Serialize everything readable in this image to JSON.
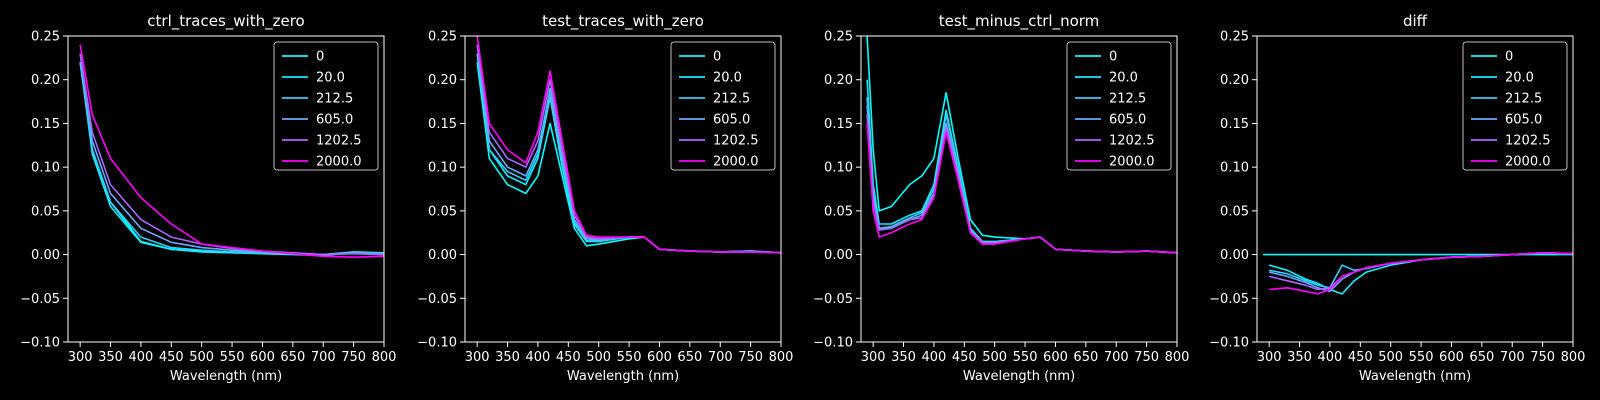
{
  "chart_data": [
    {
      "type": "line",
      "title": "ctrl_traces_with_zero",
      "xlabel": "Wavelength (nm)",
      "ylabel": "",
      "xlim": [
        280,
        800
      ],
      "ylim": [
        -0.1,
        0.25
      ],
      "xticks": [
        300,
        350,
        400,
        450,
        500,
        550,
        600,
        650,
        700,
        750,
        800
      ],
      "yticks": [
        -0.1,
        -0.05,
        0.0,
        0.05,
        0.1,
        0.15,
        0.2,
        0.25
      ],
      "ytick_labels": [
        "−0.10",
        "−0.05",
        "0.00",
        "0.05",
        "0.10",
        "0.15",
        "0.20",
        "0.25"
      ],
      "legend": "top-right",
      "series": [
        {
          "name": "0",
          "color": "#00ffff",
          "x": [
            300,
            320,
            350,
            400,
            450,
            500,
            550,
            600,
            650,
            700,
            750,
            800
          ],
          "y": [
            0.22,
            0.12,
            0.06,
            0.015,
            0.006,
            0.004,
            0.003,
            0.002,
            0.001,
            0.0,
            0.003,
            0.002
          ]
        },
        {
          "name": "20.0",
          "color": "#10efff",
          "x": [
            300,
            320,
            350,
            400,
            450,
            500,
            550,
            600,
            650,
            700,
            750,
            800
          ],
          "y": [
            0.22,
            0.115,
            0.055,
            0.014,
            0.006,
            0.003,
            0.002,
            0.001,
            0.0,
            -0.001,
            0.002,
            0.001
          ]
        },
        {
          "name": "212.5",
          "color": "#33ccff",
          "x": [
            300,
            320,
            350,
            400,
            450,
            500,
            550,
            600,
            650,
            700,
            750,
            800
          ],
          "y": [
            0.22,
            0.12,
            0.06,
            0.02,
            0.008,
            0.005,
            0.003,
            0.002,
            0.001,
            0.0,
            0.002,
            0.001
          ]
        },
        {
          "name": "605.0",
          "color": "#66aaff",
          "x": [
            300,
            320,
            350,
            400,
            450,
            500,
            550,
            600,
            650,
            700,
            750,
            800
          ],
          "y": [
            0.23,
            0.13,
            0.07,
            0.03,
            0.014,
            0.008,
            0.005,
            0.003,
            0.001,
            0.0,
            0.002,
            0.001
          ]
        },
        {
          "name": "1202.5",
          "color": "#aa66ff",
          "x": [
            300,
            320,
            350,
            400,
            450,
            500,
            550,
            600,
            650,
            700,
            750,
            800
          ],
          "y": [
            0.23,
            0.14,
            0.08,
            0.04,
            0.02,
            0.012,
            0.007,
            0.004,
            0.002,
            0.0,
            0.001,
            0.0
          ]
        },
        {
          "name": "2000.0",
          "color": "#ff00ff",
          "x": [
            300,
            320,
            350,
            400,
            450,
            500,
            550,
            600,
            650,
            700,
            750,
            800
          ],
          "y": [
            0.24,
            0.16,
            0.11,
            0.065,
            0.035,
            0.012,
            0.008,
            0.004,
            0.001,
            -0.002,
            -0.003,
            -0.002
          ]
        }
      ]
    },
    {
      "type": "line",
      "title": "test_traces_with_zero",
      "xlabel": "Wavelength (nm)",
      "ylabel": "",
      "xlim": [
        280,
        800
      ],
      "ylim": [
        -0.1,
        0.25
      ],
      "xticks": [
        300,
        350,
        400,
        450,
        500,
        550,
        600,
        650,
        700,
        750,
        800
      ],
      "yticks": [
        -0.1,
        -0.05,
        0.0,
        0.05,
        0.1,
        0.15,
        0.2,
        0.25
      ],
      "ytick_labels": [
        "−0.10",
        "−0.05",
        "0.00",
        "0.05",
        "0.10",
        "0.15",
        "0.20",
        "0.25"
      ],
      "legend": "top-right",
      "series": [
        {
          "name": "0",
          "color": "#00ffff",
          "x": [
            300,
            320,
            350,
            380,
            400,
            420,
            440,
            460,
            480,
            500,
            550,
            575,
            600,
            650,
            700,
            750,
            800
          ],
          "y": [
            0.22,
            0.11,
            0.08,
            0.07,
            0.09,
            0.15,
            0.09,
            0.03,
            0.01,
            0.012,
            0.018,
            0.02,
            0.006,
            0.004,
            0.003,
            0.004,
            0.002
          ]
        },
        {
          "name": "20.0",
          "color": "#10efff",
          "x": [
            300,
            320,
            350,
            380,
            400,
            420,
            440,
            460,
            480,
            500,
            550,
            575,
            600,
            650,
            700,
            750,
            800
          ],
          "y": [
            0.23,
            0.12,
            0.09,
            0.08,
            0.11,
            0.18,
            0.1,
            0.035,
            0.015,
            0.015,
            0.02,
            0.02,
            0.006,
            0.004,
            0.003,
            0.004,
            0.002
          ]
        },
        {
          "name": "212.5",
          "color": "#33ccff",
          "x": [
            300,
            320,
            350,
            380,
            400,
            420,
            440,
            460,
            480,
            500,
            550,
            575,
            600,
            650,
            700,
            750,
            800
          ],
          "y": [
            0.23,
            0.12,
            0.095,
            0.085,
            0.115,
            0.19,
            0.11,
            0.038,
            0.016,
            0.016,
            0.02,
            0.02,
            0.006,
            0.004,
            0.003,
            0.004,
            0.002
          ]
        },
        {
          "name": "605.0",
          "color": "#66aaff",
          "x": [
            300,
            320,
            350,
            380,
            400,
            420,
            440,
            460,
            480,
            500,
            550,
            575,
            600,
            650,
            700,
            750,
            800
          ],
          "y": [
            0.24,
            0.13,
            0.1,
            0.09,
            0.12,
            0.185,
            0.11,
            0.04,
            0.018,
            0.017,
            0.02,
            0.02,
            0.006,
            0.004,
            0.003,
            0.003,
            0.002
          ]
        },
        {
          "name": "1202.5",
          "color": "#aa66ff",
          "x": [
            300,
            320,
            350,
            380,
            400,
            420,
            440,
            460,
            480,
            500,
            550,
            575,
            600,
            650,
            700,
            750,
            800
          ],
          "y": [
            0.24,
            0.14,
            0.11,
            0.1,
            0.13,
            0.2,
            0.12,
            0.045,
            0.02,
            0.018,
            0.02,
            0.02,
            0.006,
            0.004,
            0.003,
            0.003,
            0.002
          ]
        },
        {
          "name": "2000.0",
          "color": "#ff00ff",
          "x": [
            300,
            320,
            350,
            380,
            400,
            420,
            440,
            460,
            480,
            500,
            550,
            575,
            600,
            650,
            700,
            750,
            800
          ],
          "y": [
            0.25,
            0.15,
            0.12,
            0.105,
            0.14,
            0.21,
            0.13,
            0.05,
            0.022,
            0.02,
            0.02,
            0.02,
            0.006,
            0.004,
            0.003,
            0.003,
            0.002
          ]
        }
      ]
    },
    {
      "type": "line",
      "title": "test_minus_ctrl_norm",
      "xlabel": "Wavelength (nm)",
      "ylabel": "",
      "xlim": [
        280,
        800
      ],
      "ylim": [
        -0.1,
        0.25
      ],
      "xticks": [
        300,
        350,
        400,
        450,
        500,
        550,
        600,
        650,
        700,
        750,
        800
      ],
      "yticks": [
        -0.1,
        -0.05,
        0.0,
        0.05,
        0.1,
        0.15,
        0.2,
        0.25
      ],
      "ytick_labels": [
        "−0.10",
        "−0.05",
        "0.00",
        "0.05",
        "0.10",
        "0.15",
        "0.20",
        "0.25"
      ],
      "legend": "top-right",
      "series": [
        {
          "name": "0",
          "color": "#00ffff",
          "x": [
            290,
            300,
            310,
            330,
            360,
            380,
            400,
            420,
            440,
            460,
            480,
            500,
            550,
            575,
            600,
            650,
            700,
            750,
            800
          ],
          "y": [
            0.25,
            0.12,
            0.05,
            0.055,
            0.08,
            0.09,
            0.11,
            0.185,
            0.11,
            0.04,
            0.022,
            0.02,
            0.018,
            0.02,
            0.006,
            0.004,
            0.003,
            0.004,
            0.002
          ]
        },
        {
          "name": "20.0",
          "color": "#10efff",
          "x": [
            290,
            300,
            310,
            330,
            360,
            380,
            400,
            420,
            440,
            460,
            480,
            500,
            550,
            575,
            600,
            650,
            700,
            750,
            800
          ],
          "y": [
            0.2,
            0.08,
            0.035,
            0.035,
            0.045,
            0.05,
            0.08,
            0.165,
            0.1,
            0.03,
            0.015,
            0.015,
            0.018,
            0.02,
            0.006,
            0.004,
            0.003,
            0.004,
            0.002
          ]
        },
        {
          "name": "212.5",
          "color": "#33ccff",
          "x": [
            290,
            300,
            310,
            330,
            360,
            380,
            400,
            420,
            440,
            460,
            480,
            500,
            550,
            575,
            600,
            650,
            700,
            750,
            800
          ],
          "y": [
            0.18,
            0.07,
            0.03,
            0.032,
            0.042,
            0.048,
            0.075,
            0.16,
            0.1,
            0.03,
            0.015,
            0.015,
            0.018,
            0.02,
            0.006,
            0.004,
            0.003,
            0.004,
            0.002
          ]
        },
        {
          "name": "605.0",
          "color": "#66aaff",
          "x": [
            290,
            300,
            310,
            330,
            360,
            380,
            400,
            420,
            440,
            460,
            480,
            500,
            550,
            575,
            600,
            650,
            700,
            750,
            800
          ],
          "y": [
            0.17,
            0.065,
            0.03,
            0.03,
            0.04,
            0.045,
            0.07,
            0.15,
            0.095,
            0.028,
            0.014,
            0.014,
            0.018,
            0.02,
            0.006,
            0.004,
            0.003,
            0.004,
            0.002
          ]
        },
        {
          "name": "1202.5",
          "color": "#aa66ff",
          "x": [
            290,
            300,
            310,
            330,
            360,
            380,
            400,
            420,
            440,
            460,
            480,
            500,
            550,
            575,
            600,
            650,
            700,
            750,
            800
          ],
          "y": [
            0.16,
            0.06,
            0.028,
            0.03,
            0.04,
            0.042,
            0.068,
            0.145,
            0.09,
            0.026,
            0.013,
            0.013,
            0.018,
            0.02,
            0.006,
            0.004,
            0.003,
            0.004,
            0.002
          ]
        },
        {
          "name": "2000.0",
          "color": "#ff00ff",
          "x": [
            290,
            300,
            310,
            330,
            360,
            380,
            400,
            420,
            440,
            460,
            480,
            500,
            550,
            575,
            600,
            650,
            700,
            750,
            800
          ],
          "y": [
            0.15,
            0.05,
            0.02,
            0.025,
            0.035,
            0.04,
            0.065,
            0.14,
            0.085,
            0.025,
            0.012,
            0.012,
            0.018,
            0.02,
            0.006,
            0.004,
            0.003,
            0.004,
            0.002
          ]
        }
      ]
    },
    {
      "type": "line",
      "title": "diff",
      "xlabel": "Wavelength (nm)",
      "ylabel": "",
      "xlim": [
        280,
        800
      ],
      "ylim": [
        -0.1,
        0.25
      ],
      "xticks": [
        300,
        350,
        400,
        450,
        500,
        550,
        600,
        650,
        700,
        750,
        800
      ],
      "yticks": [
        -0.1,
        -0.05,
        0.0,
        0.05,
        0.1,
        0.15,
        0.2,
        0.25
      ],
      "ytick_labels": [
        "−0.10",
        "−0.05",
        "0.00",
        "0.05",
        "0.10",
        "0.15",
        "0.20",
        "0.25"
      ],
      "legend": "top-right",
      "series": [
        {
          "name": "0",
          "color": "#00ffff",
          "x": [
            290,
            400,
            500,
            600,
            700,
            800
          ],
          "y": [
            0.0,
            0.0,
            0.0,
            0.0,
            0.0,
            0.0
          ]
        },
        {
          "name": "20.0",
          "color": "#10efff",
          "x": [
            300,
            330,
            360,
            380,
            400,
            420,
            440,
            460,
            500,
            550,
            600,
            650,
            700,
            750,
            800
          ],
          "y": [
            -0.012,
            -0.018,
            -0.028,
            -0.033,
            -0.04,
            -0.045,
            -0.03,
            -0.02,
            -0.012,
            -0.006,
            -0.003,
            -0.002,
            0.0,
            0.002,
            0.001
          ]
        },
        {
          "name": "212.5",
          "color": "#33ccff",
          "x": [
            300,
            330,
            360,
            380,
            400,
            420,
            440,
            460,
            500,
            550,
            600,
            650,
            700,
            750,
            800
          ],
          "y": [
            -0.018,
            -0.022,
            -0.03,
            -0.035,
            -0.038,
            -0.012,
            -0.018,
            -0.016,
            -0.01,
            -0.006,
            -0.003,
            -0.002,
            0.0,
            0.002,
            0.001
          ]
        },
        {
          "name": "605.0",
          "color": "#66aaff",
          "x": [
            300,
            330,
            360,
            380,
            400,
            420,
            440,
            460,
            500,
            550,
            600,
            650,
            700,
            750,
            800
          ],
          "y": [
            -0.02,
            -0.025,
            -0.032,
            -0.038,
            -0.042,
            -0.028,
            -0.02,
            -0.015,
            -0.01,
            -0.006,
            -0.003,
            -0.002,
            0.0,
            0.002,
            0.001
          ]
        },
        {
          "name": "1202.5",
          "color": "#aa66ff",
          "x": [
            300,
            330,
            360,
            380,
            400,
            420,
            440,
            460,
            500,
            550,
            600,
            650,
            700,
            750,
            800
          ],
          "y": [
            -0.025,
            -0.03,
            -0.035,
            -0.04,
            -0.038,
            -0.025,
            -0.02,
            -0.015,
            -0.01,
            -0.006,
            -0.003,
            -0.002,
            0.0,
            0.002,
            0.001
          ]
        },
        {
          "name": "2000.0",
          "color": "#ff00ff",
          "x": [
            300,
            330,
            360,
            380,
            400,
            420,
            440,
            460,
            500,
            550,
            600,
            650,
            700,
            750,
            800
          ],
          "y": [
            -0.04,
            -0.038,
            -0.042,
            -0.045,
            -0.04,
            -0.025,
            -0.02,
            -0.015,
            -0.01,
            -0.006,
            -0.003,
            -0.002,
            0.0,
            0.002,
            0.001
          ]
        }
      ]
    }
  ]
}
